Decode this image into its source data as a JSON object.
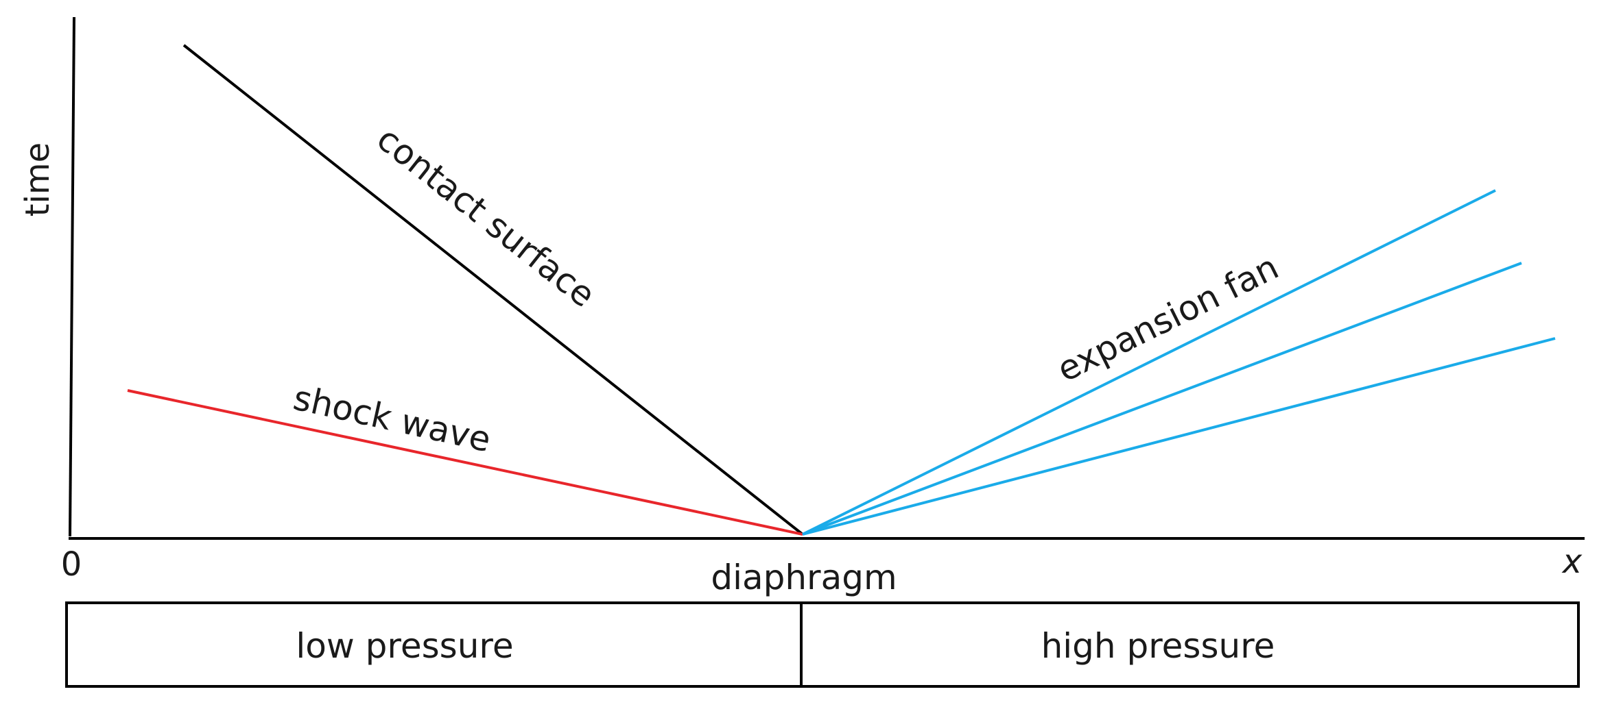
{
  "axes": {
    "y_label": "time",
    "x_label": "x",
    "origin_label": "0"
  },
  "waves": {
    "contact_surface": {
      "label": "contact surface",
      "color": "#000000"
    },
    "shock_wave": {
      "label": "shock wave",
      "color": "#e8262b"
    },
    "expansion_fan": {
      "label": "expansion fan",
      "color": "#1aabe9"
    }
  },
  "diaphragm": {
    "label": "diaphragm"
  },
  "tube": {
    "left_label": "low pressure",
    "right_label": "high pressure"
  }
}
